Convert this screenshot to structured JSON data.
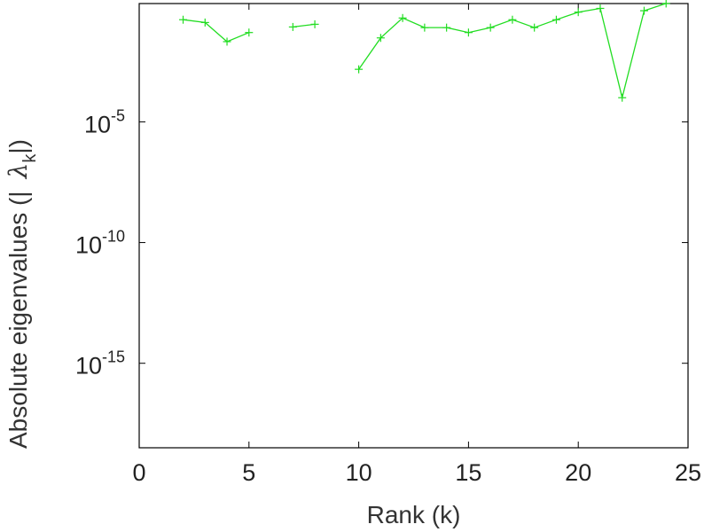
{
  "chart_data": {
    "type": "line",
    "title": "",
    "xlabel": "Rank (k)",
    "ylabel": {
      "prefix": "Absolute eigenvalues (|",
      "symbol": "λ",
      "subscript": "k",
      "suffix": "|)"
    },
    "xlim": [
      0,
      25
    ],
    "ylim_log10": [
      -18.5,
      -0.1
    ],
    "y_scale": "log",
    "grid": false,
    "x_ticks": [
      0,
      5,
      10,
      15,
      20,
      25
    ],
    "y_ticks": [
      {
        "base": "10",
        "exp": "-5",
        "log10": -5
      },
      {
        "base": "10",
        "exp": "-10",
        "log10": -10
      },
      {
        "base": "10",
        "exp": "-15",
        "log10": -15
      }
    ],
    "series": [
      {
        "color": "#22dd22",
        "marker": "plus",
        "points": [
          {
            "x": 2,
            "y": 0.17
          },
          {
            "x": 3,
            "y": 0.13
          },
          {
            "x": 4,
            "y": 0.021
          },
          {
            "x": 5,
            "y": 0.05
          },
          {
            "x": 7,
            "y": 0.085
          },
          {
            "x": 8,
            "y": 0.11
          },
          {
            "x": 10,
            "y": 0.0015
          },
          {
            "x": 11,
            "y": 0.03
          },
          {
            "x": 12,
            "y": 0.2
          },
          {
            "x": 13,
            "y": 0.08
          },
          {
            "x": 14,
            "y": 0.08
          },
          {
            "x": 15,
            "y": 0.05
          },
          {
            "x": 16,
            "y": 0.08
          },
          {
            "x": 17,
            "y": 0.17
          },
          {
            "x": 18,
            "y": 0.08
          },
          {
            "x": 19,
            "y": 0.17
          },
          {
            "x": 20,
            "y": 0.35
          },
          {
            "x": 21,
            "y": 0.5
          },
          {
            "x": 22,
            "y": 0.0001
          },
          {
            "x": 23,
            "y": 0.4
          },
          {
            "x": 24,
            "y": 0.8
          }
        ],
        "segments": [
          [
            0,
            3
          ],
          [
            4,
            5
          ],
          [
            6,
            20
          ]
        ]
      }
    ]
  }
}
